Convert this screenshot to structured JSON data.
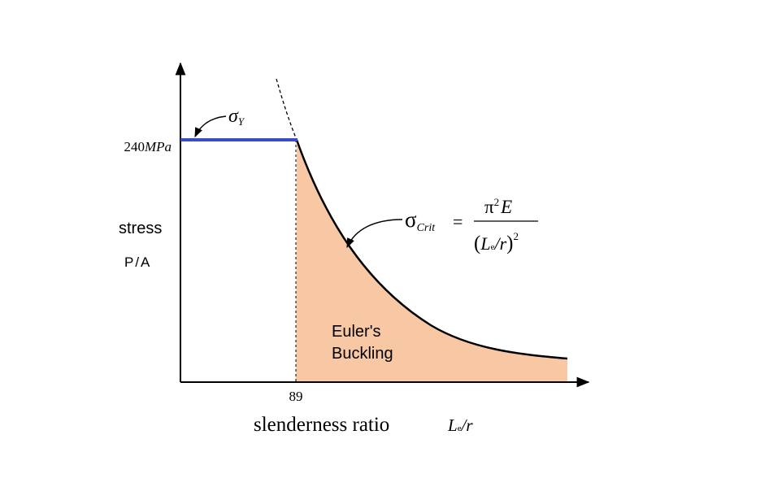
{
  "axes": {
    "y_tick": {
      "number": "240",
      "unit": "MPa"
    },
    "y_label": "stress",
    "y_sublabel": "P/A",
    "x_tick": "89",
    "x_label": "slenderness ratio",
    "x_sublabel": {
      "symbol": "L",
      "subscript": "e",
      "rest": "/r"
    }
  },
  "annotations": {
    "yield": {
      "symbol": "σ",
      "subscript": "Y"
    },
    "critical": {
      "symbol": "σ",
      "subscript": "Crit",
      "equals": "=",
      "numerator": {
        "pi": "π",
        "power": "2",
        "modulus": "E"
      },
      "denominator": {
        "open": "(",
        "symbol": "L",
        "subscript": "e",
        "rest": "/r",
        "close": ")",
        "power": "2"
      }
    }
  },
  "region_label": [
    "Euler's",
    "Buckling"
  ]
}
